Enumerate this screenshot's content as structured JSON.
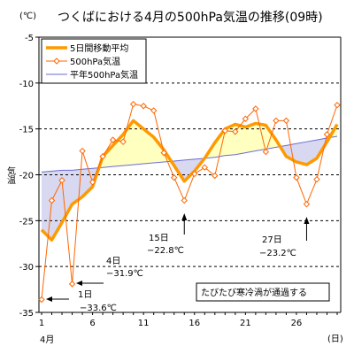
{
  "chart_data": {
    "type": "line",
    "title": "つくばにおける4月の500hPa気温の推移(09時)",
    "y_unit": "(℃)",
    "ylabel": "気温",
    "x_unit": "(日)",
    "x_month_label": "4月",
    "ylim": [
      -35,
      -5
    ],
    "yticks": [
      -35,
      -30,
      -25,
      -20,
      -15,
      -10,
      -5
    ],
    "xlim": [
      1,
      30
    ],
    "xticks": [
      1,
      6,
      11,
      16,
      21,
      26
    ],
    "grid": "horizontal dashed",
    "legend_position": "top-left",
    "x": [
      1,
      2,
      3,
      4,
      5,
      6,
      7,
      8,
      9,
      10,
      11,
      12,
      13,
      14,
      15,
      16,
      17,
      18,
      19,
      20,
      21,
      22,
      23,
      24,
      25,
      26,
      27,
      28,
      29,
      30
    ],
    "series": [
      {
        "name": "5日間移動平均",
        "color": "#ff9900",
        "values": [
          -26.0,
          -27.1,
          -25.2,
          -23.2,
          -22.4,
          -21.3,
          -18.0,
          -16.8,
          -15.6,
          -14.1,
          -15.0,
          -15.9,
          -17.3,
          -19.0,
          -20.7,
          -19.6,
          -18.2,
          -16.5,
          -15.0,
          -14.5,
          -14.8,
          -14.4,
          -14.6,
          -16.2,
          -18.0,
          -18.6,
          -18.9,
          -18.2,
          -16.4,
          -14.5
        ]
      },
      {
        "name": "500hPa気温",
        "color": "#ff6600",
        "values": [
          -33.6,
          -22.8,
          -20.6,
          -31.9,
          -17.4,
          -20.8,
          -18.0,
          -16.2,
          -16.4,
          -12.3,
          -12.5,
          -13.0,
          -17.6,
          -20.3,
          -22.8,
          -19.9,
          -19.2,
          -20.1,
          -15.2,
          -15.3,
          -13.9,
          -12.8,
          -17.5,
          -14.1,
          -14.1,
          -20.3,
          -23.2,
          -20.5,
          -15.6,
          -12.4
        ]
      },
      {
        "name": "平年500hPa気温",
        "color": "#6b6bd6",
        "values": [
          -19.7,
          -19.6,
          -19.5,
          -19.5,
          -19.4,
          -19.3,
          -19.2,
          -19.1,
          -19.0,
          -18.9,
          -18.8,
          -18.7,
          -18.6,
          -18.5,
          -18.4,
          -18.3,
          -18.2,
          -18.1,
          -17.9,
          -17.8,
          -17.6,
          -17.4,
          -17.2,
          -17.0,
          -16.8,
          -16.6,
          -16.4,
          -16.2,
          -16.0,
          -15.8
        ]
      }
    ],
    "annotations": [
      {
        "day_label": "1日",
        "value_label": "−33.6℃"
      },
      {
        "day_label": "4日",
        "value_label": "−31.9℃"
      },
      {
        "day_label": "15日",
        "value_label": "−22.8℃"
      },
      {
        "day_label": "27日",
        "value_label": "−23.2℃"
      }
    ],
    "note_box": "たびたび寒冷渦が通過する",
    "warm_fill_color": "#ffffc0",
    "cold_fill_color": "#d8d8f0"
  }
}
